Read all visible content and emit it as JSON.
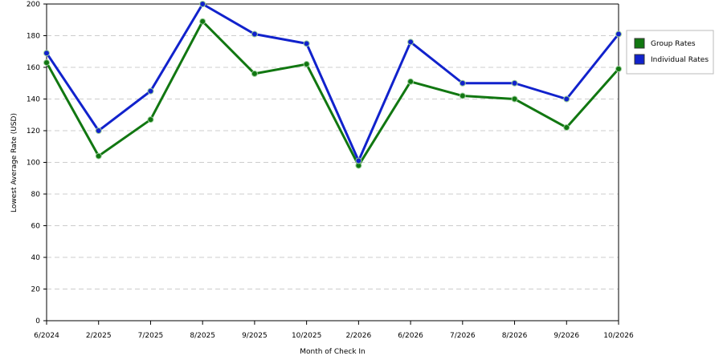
{
  "chart_data": {
    "type": "line",
    "x_label": "Month of Check In",
    "y_label": "Lowest Average Rate (USD)",
    "categories": [
      "6/2024",
      "2/2025",
      "7/2025",
      "8/2025",
      "9/2025",
      "10/2025",
      "2/2026",
      "6/2026",
      "7/2026",
      "8/2026",
      "9/2026",
      "10/2026"
    ],
    "series": [
      {
        "name": "Group Rates",
        "color": "#117711",
        "values": [
          163,
          104,
          127,
          189,
          156,
          162,
          98,
          151,
          142,
          140,
          122,
          159
        ]
      },
      {
        "name": "Individual Rates",
        "color": "#1122cc",
        "values": [
          169,
          120,
          145,
          200,
          181,
          175,
          101,
          176,
          150,
          150,
          140,
          181
        ]
      }
    ],
    "ylim": [
      0,
      200
    ],
    "yticks": [
      0,
      20,
      40,
      60,
      80,
      100,
      120,
      140,
      160,
      180,
      200
    ],
    "grid": true,
    "legend": "right"
  }
}
